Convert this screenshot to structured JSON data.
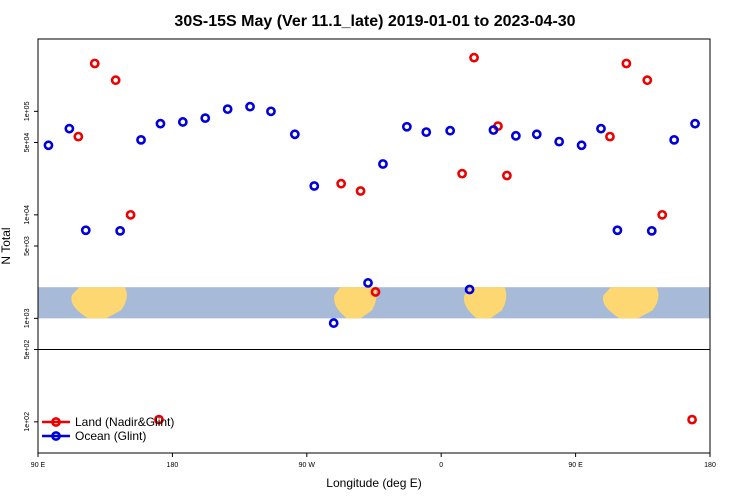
{
  "chart_data": {
    "type": "scatter",
    "title": "30S-15S May (Ver 11.1_late)   2019-01-01 to 2023-04-30",
    "xlabel": "Longitude (deg E)",
    "ylabel": "N Total",
    "x_scale": "longitude",
    "x_range": [
      90,
      540
    ],
    "x_ticks": [
      {
        "value": 90,
        "label": "90 E"
      },
      {
        "value": 180,
        "label": "180"
      },
      {
        "value": 270,
        "label": "90 W"
      },
      {
        "value": 360,
        "label": "0"
      },
      {
        "value": 450,
        "label": "90 E"
      },
      {
        "value": 540,
        "label": "180"
      }
    ],
    "y_scale": "log",
    "y_range": [
      50,
      500000
    ],
    "y_ticks": [
      {
        "value": 100,
        "label": "1e+02"
      },
      {
        "value": 500,
        "label": "5e+02"
      },
      {
        "value": 1000,
        "label": "1e+03"
      },
      {
        "value": 5000,
        "label": "5e+03"
      },
      {
        "value": 10000,
        "label": "1e+04"
      },
      {
        "value": 50000,
        "label": "5e+04"
      },
      {
        "value": 100000,
        "label": "1e+05"
      }
    ],
    "reference_line_y": 500,
    "map_strip": {
      "y_min": 1000,
      "y_max": 2000
    },
    "series": [
      {
        "name": "Land (Nadir&Glint)",
        "color": "#ee0000",
        "points": [
          {
            "x": 117,
            "y": 57000
          },
          {
            "x": 128,
            "y": 290000
          },
          {
            "x": 142,
            "y": 200000
          },
          {
            "x": 152,
            "y": 10000
          },
          {
            "x": 171,
            "y": 105
          },
          {
            "x": 293,
            "y": 20000
          },
          {
            "x": 306,
            "y": 17000
          },
          {
            "x": 316,
            "y": 1800
          },
          {
            "x": 374,
            "y": 25000
          },
          {
            "x": 398,
            "y": 72000
          },
          {
            "x": 404,
            "y": 24000
          },
          {
            "x": 473,
            "y": 57000
          },
          {
            "x": 484,
            "y": 290000
          },
          {
            "x": 498,
            "y": 200000
          },
          {
            "x": 508,
            "y": 10000
          },
          {
            "x": 528,
            "y": 105
          },
          {
            "x": 382,
            "y": 330000
          }
        ]
      },
      {
        "name": "Ocean (Glint)",
        "color": "#0000dd",
        "points": [
          {
            "x": 97,
            "y": 47000
          },
          {
            "x": 111,
            "y": 68000
          },
          {
            "x": 122,
            "y": 7100
          },
          {
            "x": 145,
            "y": 7000
          },
          {
            "x": 159,
            "y": 53000
          },
          {
            "x": 172,
            "y": 76000
          },
          {
            "x": 187,
            "y": 79000
          },
          {
            "x": 202,
            "y": 86000
          },
          {
            "x": 217,
            "y": 105000
          },
          {
            "x": 232,
            "y": 111000
          },
          {
            "x": 246,
            "y": 100000
          },
          {
            "x": 262,
            "y": 60000
          },
          {
            "x": 275,
            "y": 19000
          },
          {
            "x": 288,
            "y": 900
          },
          {
            "x": 311,
            "y": 2200
          },
          {
            "x": 321,
            "y": 31000
          },
          {
            "x": 337,
            "y": 71000
          },
          {
            "x": 350,
            "y": 63000
          },
          {
            "x": 366,
            "y": 65000
          },
          {
            "x": 379,
            "y": 1900
          },
          {
            "x": 395,
            "y": 66000
          },
          {
            "x": 410,
            "y": 58000
          },
          {
            "x": 424,
            "y": 60000
          },
          {
            "x": 439,
            "y": 51000
          },
          {
            "x": 454,
            "y": 47000
          },
          {
            "x": 467,
            "y": 68000
          },
          {
            "x": 478,
            "y": 7100
          },
          {
            "x": 501,
            "y": 7000
          },
          {
            "x": 516,
            "y": 53000
          },
          {
            "x": 530,
            "y": 76000
          }
        ]
      }
    ],
    "legend": {
      "position": "bottom-left"
    }
  }
}
